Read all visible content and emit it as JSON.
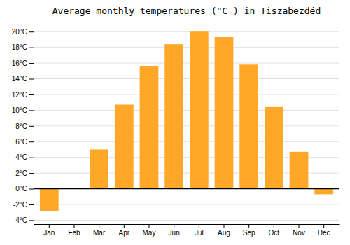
{
  "chart_data": {
    "type": "bar",
    "title": "Average monthly temperatures (°C ) in Tiszabezdéd",
    "categories": [
      "Jan",
      "Feb",
      "Mar",
      "Apr",
      "May",
      "Jun",
      "Jul",
      "Aug",
      "Sep",
      "Oct",
      "Nov",
      "Dec"
    ],
    "values": [
      -2.8,
      0.0,
      5.0,
      10.7,
      15.6,
      18.4,
      20.0,
      19.3,
      15.8,
      10.4,
      4.7,
      -0.7
    ],
    "color": "#FFA726",
    "ylim": [
      -4.5,
      21
    ],
    "yticks": [
      {
        "value": -4,
        "label": "-4°C"
      },
      {
        "value": -2,
        "label": "-2°C"
      },
      {
        "value": 0,
        "label": "0°C"
      },
      {
        "value": 2,
        "label": "2°C"
      },
      {
        "value": 4,
        "label": "4°C"
      },
      {
        "value": 6,
        "label": "6°C"
      },
      {
        "value": 8,
        "label": "8°C"
      },
      {
        "value": 10,
        "label": "10°C"
      },
      {
        "value": 12,
        "label": "12°C"
      },
      {
        "value": 14,
        "label": "14°C"
      },
      {
        "value": 16,
        "label": "16°C"
      },
      {
        "value": 18,
        "label": "18°C"
      },
      {
        "value": 20,
        "label": "20°C"
      }
    ],
    "grid": true
  }
}
